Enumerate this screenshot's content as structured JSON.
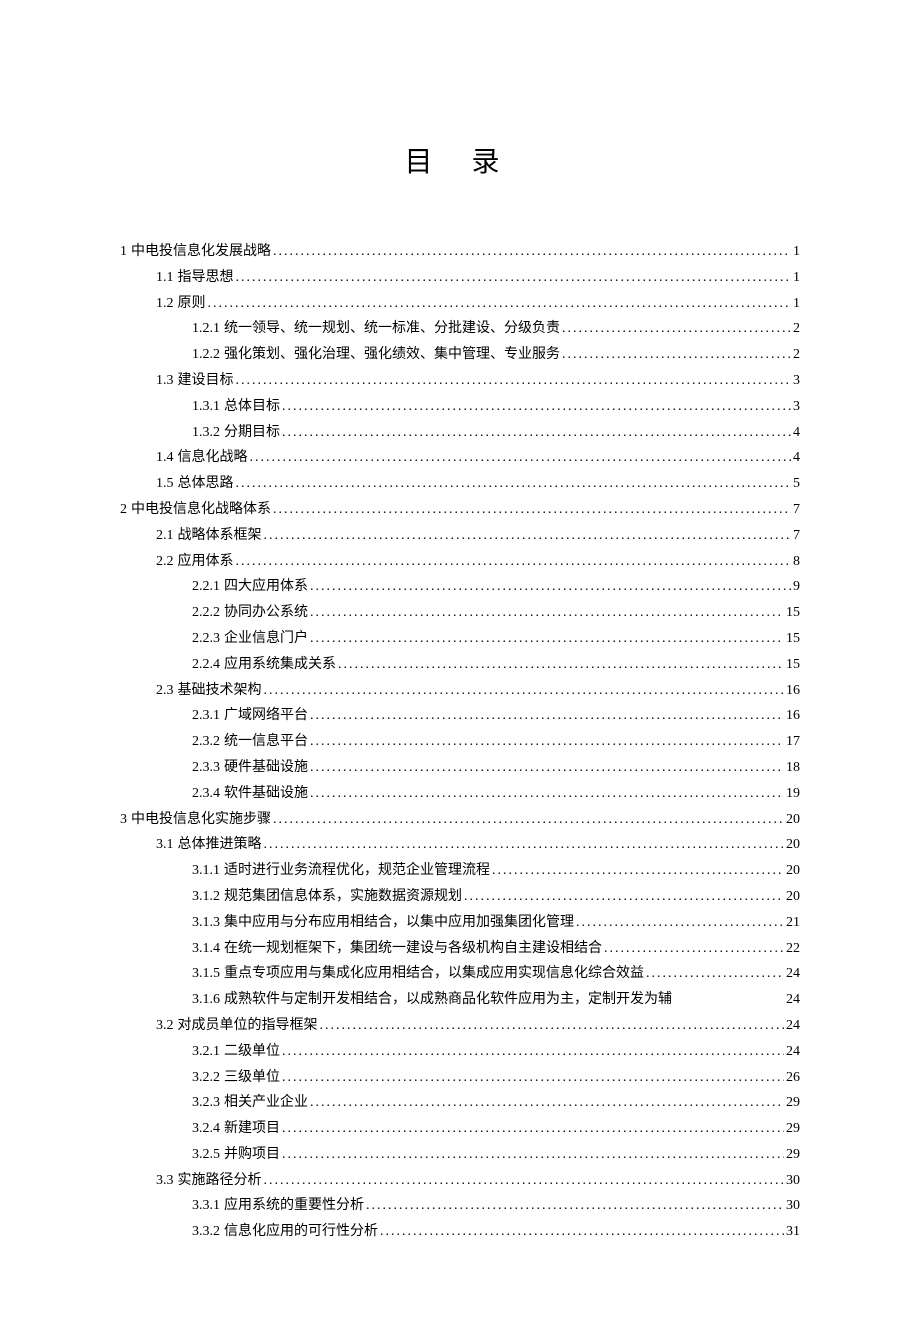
{
  "title": "目 录",
  "entries": [
    {
      "level": 1,
      "num": "1",
      "text": "中电投信息化发展战略",
      "page": "1"
    },
    {
      "level": 2,
      "num": "1.1",
      "text": "指导思想",
      "page": "1"
    },
    {
      "level": 2,
      "num": "1.2",
      "text": "原则",
      "page": "1"
    },
    {
      "level": 3,
      "num": "1.2.1",
      "text": "统一领导、统一规划、统一标准、分批建设、分级负责",
      "page": "2"
    },
    {
      "level": 3,
      "num": "1.2.2",
      "text": "强化策划、强化治理、强化绩效、集中管理、专业服务",
      "page": "2"
    },
    {
      "level": 2,
      "num": "1.3",
      "text": "建设目标",
      "page": "3"
    },
    {
      "level": 3,
      "num": "1.3.1",
      "text": "总体目标",
      "page": "3"
    },
    {
      "level": 3,
      "num": "1.3.2",
      "text": "分期目标",
      "page": "4"
    },
    {
      "level": 2,
      "num": "1.4",
      "text": "信息化战略",
      "page": "4"
    },
    {
      "level": 2,
      "num": "1.5",
      "text": "总体思路",
      "page": "5"
    },
    {
      "level": 1,
      "num": "2",
      "text": "中电投信息化战略体系",
      "page": "7"
    },
    {
      "level": 2,
      "num": "2.1",
      "text": "战略体系框架",
      "page": "7"
    },
    {
      "level": 2,
      "num": "2.2",
      "text": "应用体系",
      "page": "8"
    },
    {
      "level": 3,
      "num": "2.2.1",
      "text": "四大应用体系",
      "page": "9"
    },
    {
      "level": 3,
      "num": "2.2.2",
      "text": "协同办公系统",
      "page": "15"
    },
    {
      "level": 3,
      "num": "2.2.3",
      "text": "企业信息门户",
      "page": "15"
    },
    {
      "level": 3,
      "num": "2.2.4",
      "text": "应用系统集成关系",
      "page": "15"
    },
    {
      "level": 2,
      "num": "2.3",
      "text": "基础技术架构",
      "page": "16"
    },
    {
      "level": 3,
      "num": "2.3.1",
      "text": "广域网络平台",
      "page": "16"
    },
    {
      "level": 3,
      "num": "2.3.2",
      "text": "统一信息平台",
      "page": "17"
    },
    {
      "level": 3,
      "num": "2.3.3",
      "text": "硬件基础设施",
      "page": "18"
    },
    {
      "level": 3,
      "num": "2.3.4",
      "text": "软件基础设施",
      "page": "19"
    },
    {
      "level": 1,
      "num": "3",
      "text": "中电投信息化实施步骤",
      "page": "20"
    },
    {
      "level": 2,
      "num": "3.1",
      "text": "总体推进策略",
      "page": "20"
    },
    {
      "level": 3,
      "num": "3.1.1",
      "text": "适时进行业务流程优化，规范企业管理流程",
      "page": "20"
    },
    {
      "level": 3,
      "num": "3.1.2",
      "text": "规范集团信息体系，实施数据资源规划",
      "page": "20"
    },
    {
      "level": 3,
      "num": "3.1.3",
      "text": "集中应用与分布应用相结合，以集中应用加强集团化管理",
      "page": "21"
    },
    {
      "level": 3,
      "num": "3.1.4",
      "text": "在统一规划框架下，集团统一建设与各级机构自主建设相结合",
      "page": "22"
    },
    {
      "level": 3,
      "num": "3.1.5",
      "text": "重点专项应用与集成化应用相结合，以集成应用实现信息化综合效益",
      "page": "24"
    },
    {
      "level": 3,
      "num": "3.1.6",
      "text": "成熟软件与定制开发相结合，以成熟商品化软件应用为主，定制开发为辅",
      "page": "24",
      "no_leader": true
    },
    {
      "level": 2,
      "num": "3.2",
      "text": "对成员单位的指导框架",
      "page": "24"
    },
    {
      "level": 3,
      "num": "3.2.1",
      "text": "二级单位",
      "page": "24"
    },
    {
      "level": 3,
      "num": "3.2.2",
      "text": "三级单位",
      "page": "26"
    },
    {
      "level": 3,
      "num": "3.2.3",
      "text": "相关产业企业",
      "page": "29"
    },
    {
      "level": 3,
      "num": "3.2.4",
      "text": "新建项目",
      "page": "29"
    },
    {
      "level": 3,
      "num": "3.2.5",
      "text": "并购项目",
      "page": "29"
    },
    {
      "level": 2,
      "num": "3.3",
      "text": "实施路径分析",
      "page": "30"
    },
    {
      "level": 3,
      "num": "3.3.1",
      "text": "应用系统的重要性分析",
      "page": "30"
    },
    {
      "level": 3,
      "num": "3.3.2",
      "text": "信息化应用的可行性分析",
      "page": "31"
    }
  ]
}
